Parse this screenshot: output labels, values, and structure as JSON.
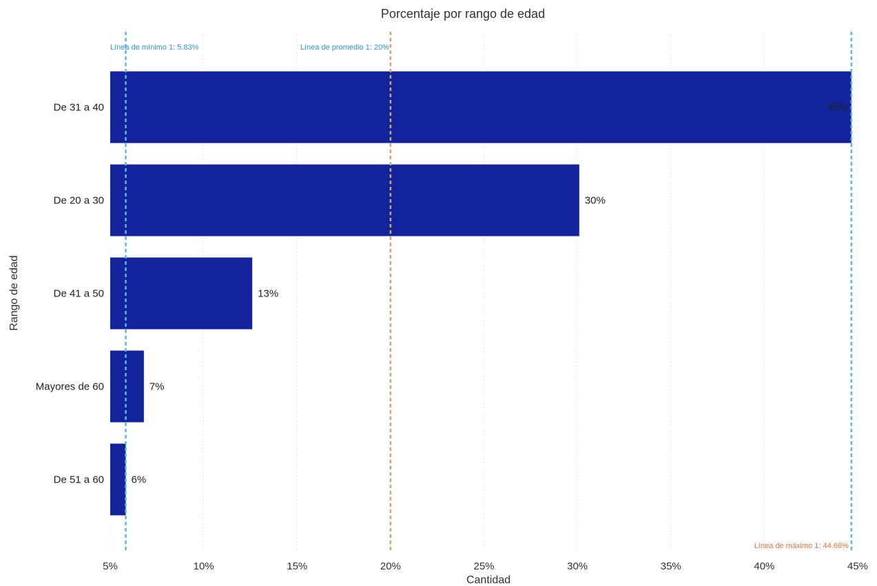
{
  "chart_data": {
    "type": "bar",
    "orientation": "horizontal",
    "title": "Porcentaje por rango de edad",
    "xlabel": "Cantidad",
    "ylabel": "Rango de edad",
    "categories": [
      "De 31 a 40",
      "De 20 a 30",
      "De 41 a 50",
      "Mayores de 60",
      "De 51 a 60"
    ],
    "values": [
      44.66,
      30.1,
      12.6,
      6.8,
      5.83
    ],
    "data_labels": [
      "45%",
      "30%",
      "13%",
      "7%",
      "6%"
    ],
    "xlim": [
      5,
      45
    ],
    "x_ticks": [
      5,
      10,
      15,
      20,
      25,
      30,
      35,
      40,
      45
    ],
    "x_tick_labels": [
      "5%",
      "10%",
      "15%",
      "20%",
      "25%",
      "30%",
      "35%",
      "40%",
      "45%"
    ],
    "grid": "vertical dotted",
    "bar_color": "#13239B",
    "reference_lines": [
      {
        "label": "Línea de mínimo 1: 5.83%",
        "value": 5.83,
        "color": "#5AB4F5",
        "text_color": "#2E95E6",
        "label_position": "top"
      },
      {
        "label": "Línea de promedio 1: 20%",
        "value": 20,
        "color": "#C8A86A",
        "text_color": "#2E95E6",
        "label_position": "top"
      },
      {
        "label": "Línea de máximo 1: 44.66%",
        "value": 44.66,
        "color": "#5AB4F5",
        "text_color": "#E8703A",
        "label_position": "bottom"
      }
    ]
  }
}
